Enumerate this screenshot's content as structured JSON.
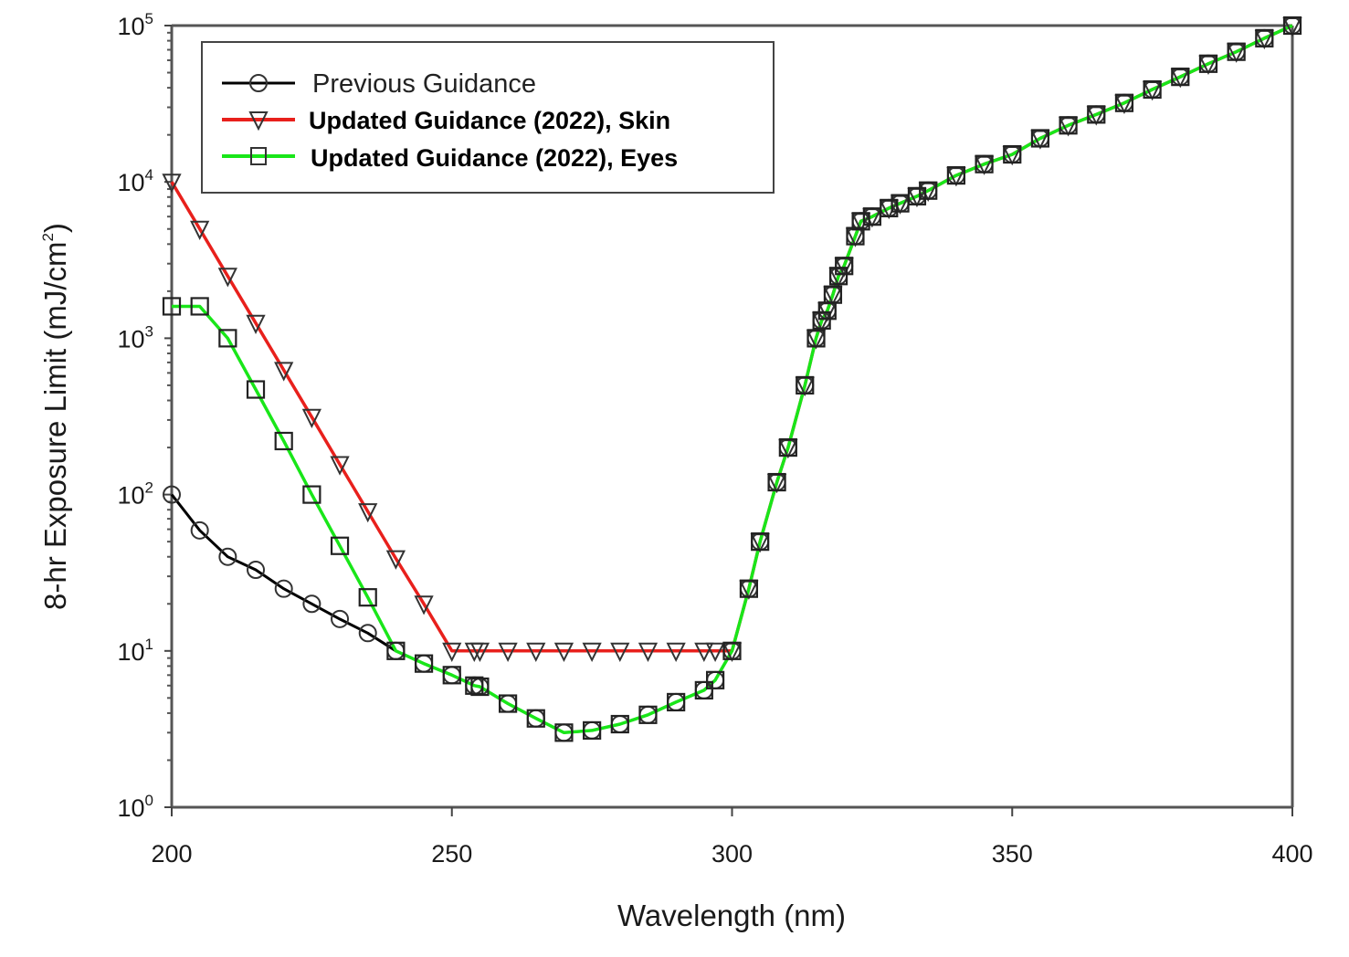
{
  "chart_data": {
    "type": "line",
    "title": "",
    "xlabel": "Wavelength (nm)",
    "ylabel": "8-hr Exposure Limit (mJ/cm",
    "ylabel_sup": "2",
    "ylabel_end": ")",
    "xlim": [
      200,
      400
    ],
    "ylim": [
      1,
      100000
    ],
    "yscale": "log",
    "grid": false,
    "legend_position": "top-left",
    "x_ticks": [
      {
        "value": 200,
        "label": "200"
      },
      {
        "value": 250,
        "label": "250"
      },
      {
        "value": 300,
        "label": "300"
      },
      {
        "value": 350,
        "label": "350"
      },
      {
        "value": 400,
        "label": "400"
      }
    ],
    "y_ticks": [
      {
        "value": 1,
        "base": "10",
        "exp": "0"
      },
      {
        "value": 10,
        "base": "10",
        "exp": "1"
      },
      {
        "value": 100,
        "base": "10",
        "exp": "2"
      },
      {
        "value": 1000,
        "base": "10",
        "exp": "3"
      },
      {
        "value": 10000,
        "base": "10",
        "exp": "4"
      },
      {
        "value": 100000,
        "base": "10",
        "exp": "5"
      }
    ],
    "series": [
      {
        "name": "Previous Guidance",
        "color": "#000000",
        "marker": "circle",
        "legend_bold": false,
        "x": [
          200,
          205,
          210,
          215,
          220,
          225,
          230,
          235,
          240,
          245,
          250,
          254,
          255,
          260,
          265,
          270,
          275,
          280,
          285,
          290,
          295,
          297,
          300,
          303,
          305,
          308,
          310,
          313,
          315,
          316,
          317,
          318,
          319,
          320,
          322,
          323,
          325,
          328,
          330,
          333,
          335,
          340,
          345,
          350,
          355,
          360,
          365,
          370,
          375,
          380,
          385,
          390,
          395,
          400
        ],
        "y": [
          100,
          59,
          40,
          33,
          25,
          20,
          16,
          13,
          10,
          8.3,
          7.0,
          6.0,
          5.9,
          4.6,
          3.7,
          3.0,
          3.1,
          3.4,
          3.9,
          4.7,
          5.6,
          6.5,
          10,
          25,
          50,
          120,
          200,
          500,
          1000,
          1300,
          1500,
          1900,
          2500,
          2900,
          4500,
          5600,
          6000,
          6800,
          7300,
          8100,
          8800,
          11000,
          13000,
          15000,
          19000,
          23000,
          27000,
          32000,
          39000,
          47000,
          57000,
          68000,
          83000,
          100000
        ]
      },
      {
        "name": "Updated Guidance (2022), Skin",
        "color": "#e8201c",
        "marker": "triangle-down",
        "legend_bold": true,
        "x": [
          200,
          205,
          210,
          215,
          220,
          225,
          230,
          235,
          240,
          245,
          250,
          254,
          255,
          260,
          265,
          270,
          275,
          280,
          285,
          290,
          295,
          297,
          300,
          303,
          305,
          308,
          310,
          313,
          315,
          316,
          317,
          318,
          319,
          320,
          322,
          323,
          325,
          328,
          330,
          333,
          335,
          340,
          345,
          350,
          355,
          360,
          365,
          370,
          375,
          380,
          385,
          390,
          395,
          400
        ],
        "y": [
          10000,
          5000,
          2500,
          1250,
          625,
          313,
          156,
          78,
          39,
          20,
          10,
          10,
          10,
          10,
          10,
          10,
          10,
          10,
          10,
          10,
          10,
          10,
          10,
          25,
          50,
          120,
          200,
          500,
          1000,
          1300,
          1500,
          1900,
          2500,
          2900,
          4500,
          5600,
          6000,
          6800,
          7300,
          8100,
          8800,
          11000,
          13000,
          15000,
          19000,
          23000,
          27000,
          32000,
          39000,
          47000,
          57000,
          68000,
          83000,
          100000
        ]
      },
      {
        "name": "Updated Guidance (2022), Eyes",
        "color": "#19e619",
        "marker": "square",
        "legend_bold": true,
        "x": [
          200,
          205,
          210,
          215,
          220,
          225,
          230,
          235,
          240,
          245,
          250,
          254,
          255,
          260,
          265,
          270,
          275,
          280,
          285,
          290,
          295,
          297,
          300,
          303,
          305,
          308,
          310,
          313,
          315,
          316,
          317,
          318,
          319,
          320,
          322,
          323,
          325,
          328,
          330,
          333,
          335,
          340,
          345,
          350,
          355,
          360,
          365,
          370,
          375,
          380,
          385,
          390,
          395,
          400
        ],
        "y": [
          1600,
          1600,
          1000,
          470,
          220,
          100,
          47,
          22,
          10,
          8.3,
          7.0,
          6.0,
          5.9,
          4.6,
          3.7,
          3.0,
          3.1,
          3.4,
          3.9,
          4.7,
          5.6,
          6.5,
          10,
          25,
          50,
          120,
          200,
          500,
          1000,
          1300,
          1500,
          1900,
          2500,
          2900,
          4500,
          5600,
          6000,
          6800,
          7300,
          8100,
          8800,
          11000,
          13000,
          15000,
          19000,
          23000,
          27000,
          32000,
          39000,
          47000,
          57000,
          68000,
          83000,
          100000
        ]
      }
    ]
  }
}
